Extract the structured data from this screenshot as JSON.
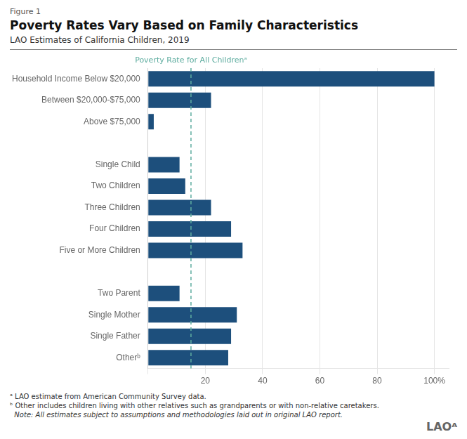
{
  "chart_data": {
    "type": "bar",
    "orientation": "horizontal",
    "figure_label": "Figure 1",
    "title": "Poverty Rates Vary Based on Family Characteristics",
    "subtitle": "LAO Estimates of California Children, 2019",
    "categories": [
      "Household Income Below $20,000",
      "Between $20,000-$75,000",
      "Above $75,000",
      null,
      "Single Child",
      "Two Children",
      "Three Children",
      "Four Children",
      "Five or More Children",
      null,
      "Two Parent",
      "Single Mother",
      "Single Father",
      "Otherᵇ"
    ],
    "values": [
      100,
      22,
      2,
      null,
      11,
      13,
      22,
      29,
      33,
      null,
      11,
      31,
      29,
      28
    ],
    "color": "#1d4f7c",
    "xlim": [
      0,
      105
    ],
    "xticks": [
      {
        "value": 0,
        "label": ""
      },
      20,
      40,
      60,
      80,
      {
        "value": 100,
        "label": "100%"
      }
    ],
    "grid": true,
    "reference_line": {
      "value": 15,
      "label": "Poverty Rate for All Childrenᵃ",
      "color": "#5fada0"
    },
    "footnotes": [
      "ᵃ LAO estimate from American Community Survey data.",
      "ᵇ Other includes children living with other relatives such as grandparents or with non-relative caretakers.",
      "  Note: All estimates subject to assumptions and methodologies laid out in original LAO report."
    ],
    "watermark": "LAOᴬ"
  }
}
